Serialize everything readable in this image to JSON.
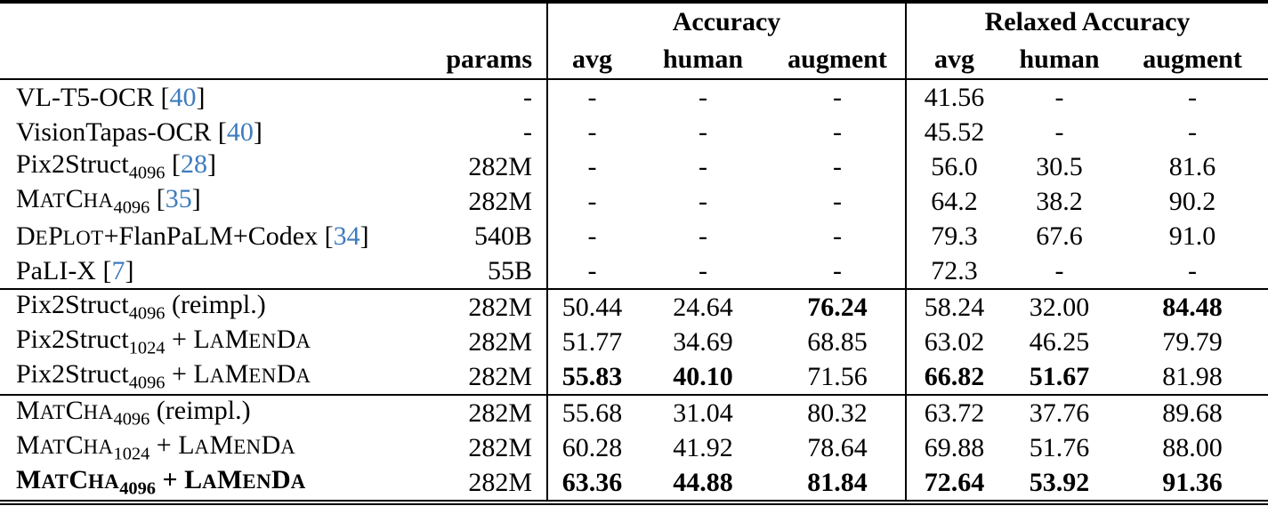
{
  "colors": {
    "citation_blue": "#3e7cbd",
    "text": "#000000",
    "background": "#ffffff"
  },
  "header": {
    "params_label": "params",
    "groups": [
      {
        "label": "Accuracy",
        "subcols": [
          "avg",
          "human",
          "augment"
        ]
      },
      {
        "label": "Relaxed Accuracy",
        "subcols": [
          "avg",
          "human",
          "augment"
        ]
      }
    ]
  },
  "rows": [
    {
      "name_parts": [
        {
          "t": "VL-T5-OCR "
        },
        {
          "t": "["
        },
        {
          "t": "40",
          "s": "cite"
        },
        {
          "t": "]"
        }
      ],
      "params": "-",
      "bold_name": false,
      "rule_above": false,
      "cells": [
        {
          "v": "-",
          "b": false
        },
        {
          "v": "-",
          "b": false
        },
        {
          "v": "-",
          "b": false
        },
        {
          "v": "41.56",
          "b": false
        },
        {
          "v": "-",
          "b": false
        },
        {
          "v": "-",
          "b": false
        }
      ]
    },
    {
      "name_parts": [
        {
          "t": "VisionTapas-OCR "
        },
        {
          "t": "["
        },
        {
          "t": "40",
          "s": "cite"
        },
        {
          "t": "]"
        }
      ],
      "params": "-",
      "bold_name": false,
      "rule_above": false,
      "cells": [
        {
          "v": "-",
          "b": false
        },
        {
          "v": "-",
          "b": false
        },
        {
          "v": "-",
          "b": false
        },
        {
          "v": "45.52",
          "b": false
        },
        {
          "v": "-",
          "b": false
        },
        {
          "v": "-",
          "b": false
        }
      ]
    },
    {
      "name_parts": [
        {
          "t": "Pix2Struct"
        },
        {
          "t": "4096",
          "s": "sub"
        },
        {
          "t": " "
        },
        {
          "t": "["
        },
        {
          "t": "28",
          "s": "cite"
        },
        {
          "t": "]"
        }
      ],
      "params": "282M",
      "bold_name": false,
      "rule_above": false,
      "cells": [
        {
          "v": "-",
          "b": false
        },
        {
          "v": "-",
          "b": false
        },
        {
          "v": "-",
          "b": false
        },
        {
          "v": "56.0",
          "b": false
        },
        {
          "v": "30.5",
          "b": false
        },
        {
          "v": "81.6",
          "b": false
        }
      ]
    },
    {
      "name_parts": [
        {
          "t": "M"
        },
        {
          "t": "AT",
          "s": "sc"
        },
        {
          "t": "C"
        },
        {
          "t": "HA",
          "s": "sc"
        },
        {
          "t": "4096",
          "s": "sub"
        },
        {
          "t": " "
        },
        {
          "t": "["
        },
        {
          "t": "35",
          "s": "cite"
        },
        {
          "t": "]"
        }
      ],
      "params": "282M",
      "bold_name": false,
      "rule_above": false,
      "cells": [
        {
          "v": "-",
          "b": false
        },
        {
          "v": "-",
          "b": false
        },
        {
          "v": "-",
          "b": false
        },
        {
          "v": "64.2",
          "b": false
        },
        {
          "v": "38.2",
          "b": false
        },
        {
          "v": "90.2",
          "b": false
        }
      ]
    },
    {
      "name_parts": [
        {
          "t": "D"
        },
        {
          "t": "E",
          "s": "sc"
        },
        {
          "t": "P"
        },
        {
          "t": "LOT",
          "s": "sc"
        },
        {
          "t": "+FlanPaLM+Codex "
        },
        {
          "t": "["
        },
        {
          "t": "34",
          "s": "cite"
        },
        {
          "t": "]"
        }
      ],
      "params": "540B",
      "bold_name": false,
      "rule_above": false,
      "cells": [
        {
          "v": "-",
          "b": false
        },
        {
          "v": "-",
          "b": false
        },
        {
          "v": "-",
          "b": false
        },
        {
          "v": "79.3",
          "b": false
        },
        {
          "v": "67.6",
          "b": false
        },
        {
          "v": "91.0",
          "b": false
        }
      ]
    },
    {
      "name_parts": [
        {
          "t": "PaLI-X "
        },
        {
          "t": "["
        },
        {
          "t": "7",
          "s": "cite"
        },
        {
          "t": "]"
        }
      ],
      "params": "55B",
      "bold_name": false,
      "rule_above": false,
      "cells": [
        {
          "v": "-",
          "b": false
        },
        {
          "v": "-",
          "b": false
        },
        {
          "v": "-",
          "b": false
        },
        {
          "v": "72.3",
          "b": false
        },
        {
          "v": "-",
          "b": false
        },
        {
          "v": "-",
          "b": false
        }
      ]
    },
    {
      "name_parts": [
        {
          "t": "Pix2Struct"
        },
        {
          "t": "4096",
          "s": "sub"
        },
        {
          "t": " (reimpl.)"
        }
      ],
      "params": "282M",
      "bold_name": false,
      "rule_above": true,
      "cells": [
        {
          "v": "50.44",
          "b": false
        },
        {
          "v": "24.64",
          "b": false
        },
        {
          "v": "76.24",
          "b": true
        },
        {
          "v": "58.24",
          "b": false
        },
        {
          "v": "32.00",
          "b": false
        },
        {
          "v": "84.48",
          "b": true
        }
      ]
    },
    {
      "name_parts": [
        {
          "t": "Pix2Struct"
        },
        {
          "t": "1024",
          "s": "sub"
        },
        {
          "t": " + L"
        },
        {
          "t": "A",
          "s": "sc"
        },
        {
          "t": "M"
        },
        {
          "t": "EN",
          "s": "sc"
        },
        {
          "t": "D"
        },
        {
          "t": "A",
          "s": "sc"
        }
      ],
      "params": "282M",
      "bold_name": false,
      "rule_above": false,
      "cells": [
        {
          "v": "51.77",
          "b": false
        },
        {
          "v": "34.69",
          "b": false
        },
        {
          "v": "68.85",
          "b": false
        },
        {
          "v": "63.02",
          "b": false
        },
        {
          "v": "46.25",
          "b": false
        },
        {
          "v": "79.79",
          "b": false
        }
      ]
    },
    {
      "name_parts": [
        {
          "t": "Pix2Struct"
        },
        {
          "t": "4096",
          "s": "sub"
        },
        {
          "t": " + L"
        },
        {
          "t": "A",
          "s": "sc"
        },
        {
          "t": "M"
        },
        {
          "t": "EN",
          "s": "sc"
        },
        {
          "t": "D"
        },
        {
          "t": "A",
          "s": "sc"
        }
      ],
      "params": "282M",
      "bold_name": false,
      "rule_above": false,
      "cells": [
        {
          "v": "55.83",
          "b": true
        },
        {
          "v": "40.10",
          "b": true
        },
        {
          "v": "71.56",
          "b": false
        },
        {
          "v": "66.82",
          "b": true
        },
        {
          "v": "51.67",
          "b": true
        },
        {
          "v": "81.98",
          "b": false
        }
      ]
    },
    {
      "name_parts": [
        {
          "t": "M"
        },
        {
          "t": "AT",
          "s": "sc"
        },
        {
          "t": "C"
        },
        {
          "t": "HA",
          "s": "sc"
        },
        {
          "t": "4096",
          "s": "sub"
        },
        {
          "t": " (reimpl.)"
        }
      ],
      "params": "282M",
      "bold_name": false,
      "rule_above": true,
      "cells": [
        {
          "v": "55.68",
          "b": false
        },
        {
          "v": "31.04",
          "b": false
        },
        {
          "v": "80.32",
          "b": false
        },
        {
          "v": "63.72",
          "b": false
        },
        {
          "v": "37.76",
          "b": false
        },
        {
          "v": "89.68",
          "b": false
        }
      ]
    },
    {
      "name_parts": [
        {
          "t": "M"
        },
        {
          "t": "AT",
          "s": "sc"
        },
        {
          "t": "C"
        },
        {
          "t": "HA",
          "s": "sc"
        },
        {
          "t": "1024",
          "s": "sub"
        },
        {
          "t": " + L"
        },
        {
          "t": "A",
          "s": "sc"
        },
        {
          "t": "M"
        },
        {
          "t": "EN",
          "s": "sc"
        },
        {
          "t": "D"
        },
        {
          "t": "A",
          "s": "sc"
        }
      ],
      "params": "282M",
      "bold_name": false,
      "rule_above": false,
      "cells": [
        {
          "v": "60.28",
          "b": false
        },
        {
          "v": "41.92",
          "b": false
        },
        {
          "v": "78.64",
          "b": false
        },
        {
          "v": "69.88",
          "b": false
        },
        {
          "v": "51.76",
          "b": false
        },
        {
          "v": "88.00",
          "b": false
        }
      ]
    },
    {
      "name_parts": [
        {
          "t": "M"
        },
        {
          "t": "AT",
          "s": "sc"
        },
        {
          "t": "C"
        },
        {
          "t": "HA",
          "s": "sc"
        },
        {
          "t": "4096",
          "s": "sub"
        },
        {
          "t": " + L"
        },
        {
          "t": "A",
          "s": "sc"
        },
        {
          "t": "M"
        },
        {
          "t": "EN",
          "s": "sc"
        },
        {
          "t": "D"
        },
        {
          "t": "A",
          "s": "sc"
        }
      ],
      "params": "282M",
      "bold_name": true,
      "rule_above": false,
      "cells": [
        {
          "v": "63.36",
          "b": true
        },
        {
          "v": "44.88",
          "b": true
        },
        {
          "v": "81.84",
          "b": true
        },
        {
          "v": "72.64",
          "b": true
        },
        {
          "v": "53.92",
          "b": true
        },
        {
          "v": "91.36",
          "b": true
        }
      ]
    }
  ]
}
